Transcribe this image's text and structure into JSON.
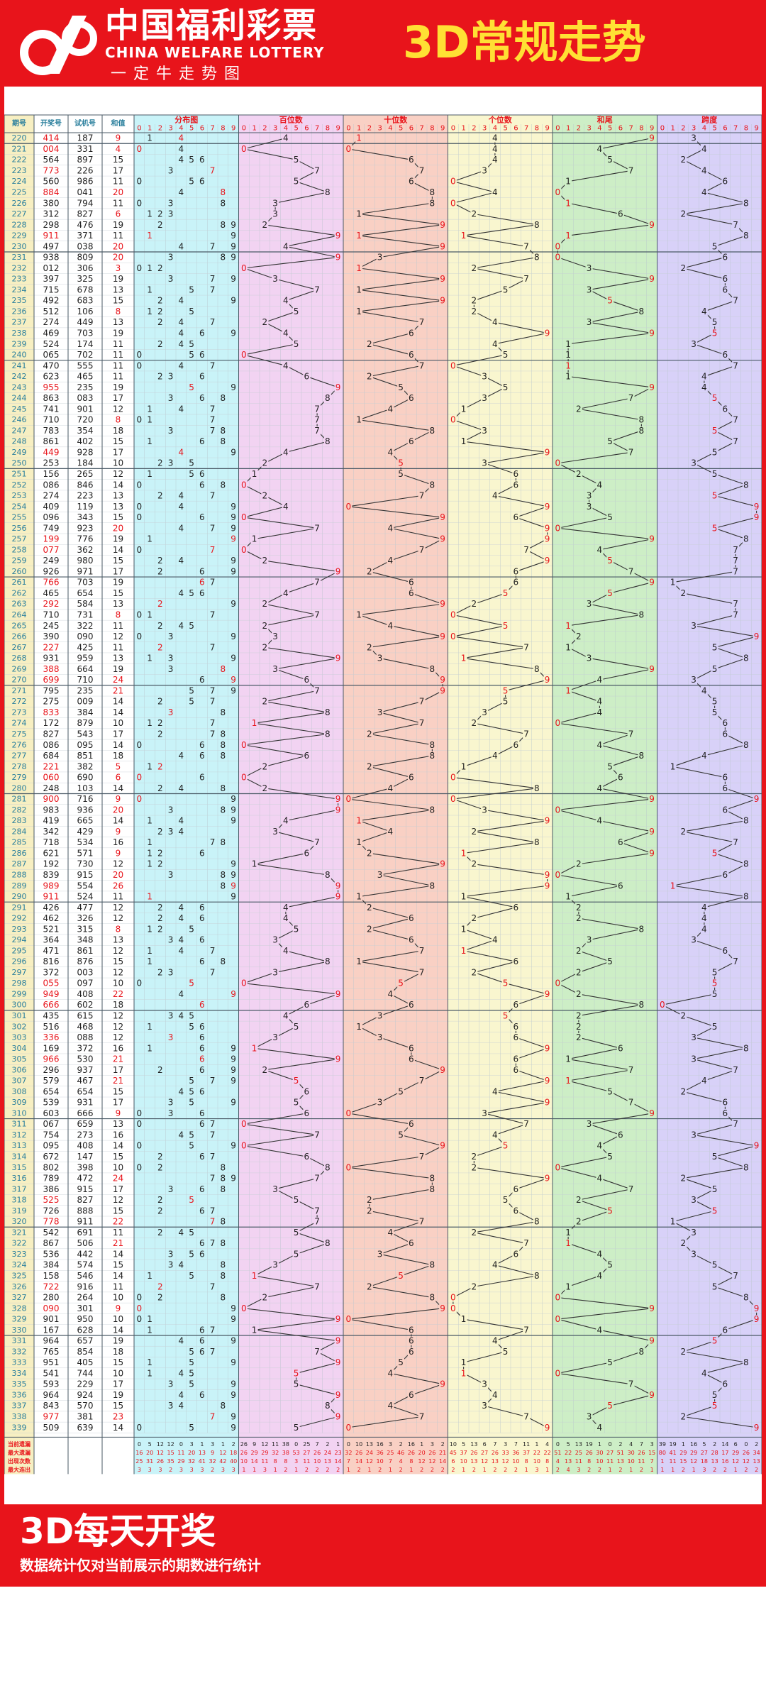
{
  "header": {
    "brand_cn": "中国福利彩票",
    "brand_en": "CHINA WELFARE LOTTERY",
    "slogan": "一定牛走势图",
    "title": "3D常规走势"
  },
  "footer": {
    "title": "3D每天开奖",
    "note": "数据统计仅对当前展示的期数进行统计"
  },
  "colors": {
    "brand_red": "#e8141b",
    "title_yellow": "#ffe034",
    "issue_col": "#f7efc2",
    "section_bg": [
      "#c9f3f8",
      "#f2d3f2",
      "#f9d0c4",
      "#f9f6cf",
      "#cdeec6",
      "#d8d1f8"
    ],
    "line": "#333333",
    "hot_number": "#e8141b",
    "issue_text": "#2a7f9d",
    "number_text": "#222222"
  },
  "chart_data": {
    "type": "table",
    "column_headers": [
      "期号",
      "开奖号",
      "试机号",
      "和值"
    ],
    "section_titles": [
      "分布图",
      "百位数",
      "十位数",
      "个位数",
      "和尾",
      "跨度"
    ],
    "digit_labels": [
      "0",
      "1",
      "2",
      "3",
      "4",
      "5",
      "6",
      "7",
      "8",
      "9"
    ],
    "stats_labels": [
      "当前遗漏",
      "最大遗漏",
      "出现次数",
      "最大连出"
    ],
    "stats": {
      "current_miss": {
        "distribution": [
          0,
          5,
          12,
          12,
          0,
          3,
          1,
          3,
          1,
          2
        ],
        "hundreds": [
          26,
          9,
          12,
          11,
          38,
          0,
          25,
          7,
          2,
          1
        ],
        "tens": [
          0,
          10,
          13,
          16,
          3,
          2,
          16,
          1,
          3,
          2
        ],
        "units": [
          10,
          5,
          13,
          6,
          7,
          3,
          7,
          11,
          1,
          4
        ],
        "sum_tail": [
          0,
          5,
          13,
          19,
          1,
          0,
          2,
          4,
          7,
          3
        ],
        "span": [
          39,
          19,
          1,
          16,
          5,
          2,
          14,
          6,
          0,
          2
        ]
      },
      "max_miss": {
        "distribution": [
          16,
          20,
          12,
          15,
          11,
          20,
          13,
          9,
          12,
          18
        ],
        "hundreds": [
          26,
          29,
          29,
          32,
          38,
          53,
          27,
          26,
          24,
          23
        ],
        "tens": [
          32,
          26,
          24,
          36,
          25,
          46,
          26,
          20,
          26,
          21
        ],
        "units": [
          45,
          37,
          26,
          27,
          26,
          33,
          36,
          37,
          22,
          22
        ],
        "sum_tail": [
          51,
          22,
          25,
          26,
          30,
          27,
          51,
          30,
          26,
          15
        ],
        "span": [
          80,
          41,
          29,
          29,
          27,
          28,
          17,
          29,
          26,
          34
        ]
      },
      "appearances": {
        "distribution": [
          25,
          31,
          26,
          35,
          29,
          32,
          41,
          32,
          42,
          40
        ],
        "hundreds": [
          10,
          14,
          11,
          8,
          8,
          3,
          11,
          10,
          13,
          14
        ],
        "tens": [
          7,
          14,
          12,
          10,
          7,
          4,
          8,
          12,
          12,
          14
        ],
        "units": [
          6,
          10,
          13,
          12,
          13,
          12,
          10,
          8,
          10,
          8
        ],
        "sum_tail": [
          4,
          13,
          11,
          8,
          10,
          11,
          13,
          10,
          11,
          7
        ],
        "span": [
          1,
          11,
          15,
          12,
          18,
          13,
          16,
          12,
          12,
          13
        ]
      },
      "max_consecutive": {
        "distribution": [
          3,
          3,
          3,
          2,
          3,
          3,
          3,
          2,
          3,
          3
        ],
        "hundreds": [
          1,
          1,
          3,
          1,
          2,
          1,
          2,
          2,
          2,
          2
        ],
        "tens": [
          1,
          2,
          1,
          2,
          1,
          2,
          1,
          2,
          2,
          2
        ],
        "units": [
          2,
          1,
          2,
          1,
          2,
          2,
          2,
          1,
          3,
          1
        ],
        "sum_tail": [
          2,
          4,
          3,
          2,
          2,
          1,
          2,
          1,
          2,
          1
        ],
        "span": [
          1,
          1,
          2,
          1,
          3,
          2,
          2,
          1,
          2,
          2
        ]
      }
    },
    "rows": [
      {
        "issue": "220",
        "draw": "414",
        "test": "187",
        "sum": "9"
      },
      {
        "issue": "221",
        "draw": "004",
        "test": "331",
        "sum": "4"
      },
      {
        "issue": "222",
        "draw": "564",
        "test": "897",
        "sum": "15"
      },
      {
        "issue": "223",
        "draw": "773",
        "test": "226",
        "sum": "17"
      },
      {
        "issue": "224",
        "draw": "560",
        "test": "986",
        "sum": "11"
      },
      {
        "issue": "225",
        "draw": "884",
        "test": "041",
        "sum": "20"
      },
      {
        "issue": "226",
        "draw": "380",
        "test": "794",
        "sum": "11"
      },
      {
        "issue": "227",
        "draw": "312",
        "test": "827",
        "sum": "6"
      },
      {
        "issue": "228",
        "draw": "298",
        "test": "476",
        "sum": "19"
      },
      {
        "issue": "229",
        "draw": "911",
        "test": "371",
        "sum": "11"
      },
      {
        "issue": "230",
        "draw": "497",
        "test": "038",
        "sum": "20"
      },
      {
        "issue": "231",
        "draw": "938",
        "test": "809",
        "sum": "20"
      },
      {
        "issue": "232",
        "draw": "012",
        "test": "306",
        "sum": "3"
      },
      {
        "issue": "233",
        "draw": "397",
        "test": "325",
        "sum": "19"
      },
      {
        "issue": "234",
        "draw": "715",
        "test": "678",
        "sum": "13"
      },
      {
        "issue": "235",
        "draw": "492",
        "test": "683",
        "sum": "15"
      },
      {
        "issue": "236",
        "draw": "512",
        "test": "106",
        "sum": "8"
      },
      {
        "issue": "237",
        "draw": "274",
        "test": "449",
        "sum": "13"
      },
      {
        "issue": "238",
        "draw": "469",
        "test": "703",
        "sum": "19"
      },
      {
        "issue": "239",
        "draw": "524",
        "test": "174",
        "sum": "11"
      },
      {
        "issue": "240",
        "draw": "065",
        "test": "702",
        "sum": "11"
      },
      {
        "issue": "241",
        "draw": "470",
        "test": "555",
        "sum": "11"
      },
      {
        "issue": "242",
        "draw": "623",
        "test": "465",
        "sum": "11"
      },
      {
        "issue": "243",
        "draw": "955",
        "test": "235",
        "sum": "19"
      },
      {
        "issue": "244",
        "draw": "863",
        "test": "083",
        "sum": "17"
      },
      {
        "issue": "245",
        "draw": "741",
        "test": "901",
        "sum": "12"
      },
      {
        "issue": "246",
        "draw": "710",
        "test": "720",
        "sum": "8"
      },
      {
        "issue": "247",
        "draw": "783",
        "test": "354",
        "sum": "18"
      },
      {
        "issue": "248",
        "draw": "861",
        "test": "402",
        "sum": "15"
      },
      {
        "issue": "249",
        "draw": "449",
        "test": "928",
        "sum": "17"
      },
      {
        "issue": "250",
        "draw": "253",
        "test": "184",
        "sum": "10"
      },
      {
        "issue": "251",
        "draw": "156",
        "test": "265",
        "sum": "12"
      },
      {
        "issue": "252",
        "draw": "086",
        "test": "846",
        "sum": "14"
      },
      {
        "issue": "253",
        "draw": "274",
        "test": "223",
        "sum": "13"
      },
      {
        "issue": "254",
        "draw": "409",
        "test": "119",
        "sum": "13"
      },
      {
        "issue": "255",
        "draw": "096",
        "test": "343",
        "sum": "15"
      },
      {
        "issue": "256",
        "draw": "749",
        "test": "923",
        "sum": "20"
      },
      {
        "issue": "257",
        "draw": "199",
        "test": "776",
        "sum": "19"
      },
      {
        "issue": "258",
        "draw": "077",
        "test": "362",
        "sum": "14"
      },
      {
        "issue": "259",
        "draw": "249",
        "test": "980",
        "sum": "15"
      },
      {
        "issue": "260",
        "draw": "926",
        "test": "971",
        "sum": "17"
      },
      {
        "issue": "261",
        "draw": "766",
        "test": "703",
        "sum": "19"
      },
      {
        "issue": "262",
        "draw": "465",
        "test": "654",
        "sum": "15"
      },
      {
        "issue": "263",
        "draw": "292",
        "test": "584",
        "sum": "13"
      },
      {
        "issue": "264",
        "draw": "710",
        "test": "731",
        "sum": "8"
      },
      {
        "issue": "265",
        "draw": "245",
        "test": "322",
        "sum": "11"
      },
      {
        "issue": "266",
        "draw": "390",
        "test": "090",
        "sum": "12"
      },
      {
        "issue": "267",
        "draw": "227",
        "test": "425",
        "sum": "11"
      },
      {
        "issue": "268",
        "draw": "931",
        "test": "959",
        "sum": "13"
      },
      {
        "issue": "269",
        "draw": "388",
        "test": "664",
        "sum": "19"
      },
      {
        "issue": "270",
        "draw": "699",
        "test": "710",
        "sum": "24"
      },
      {
        "issue": "271",
        "draw": "795",
        "test": "235",
        "sum": "21"
      },
      {
        "issue": "272",
        "draw": "275",
        "test": "009",
        "sum": "14"
      },
      {
        "issue": "273",
        "draw": "833",
        "test": "384",
        "sum": "14"
      },
      {
        "issue": "274",
        "draw": "172",
        "test": "879",
        "sum": "10"
      },
      {
        "issue": "275",
        "draw": "827",
        "test": "543",
        "sum": "17"
      },
      {
        "issue": "276",
        "draw": "086",
        "test": "095",
        "sum": "14"
      },
      {
        "issue": "277",
        "draw": "684",
        "test": "851",
        "sum": "18"
      },
      {
        "issue": "278",
        "draw": "221",
        "test": "382",
        "sum": "5"
      },
      {
        "issue": "279",
        "draw": "060",
        "test": "690",
        "sum": "6"
      },
      {
        "issue": "280",
        "draw": "248",
        "test": "103",
        "sum": "14"
      },
      {
        "issue": "281",
        "draw": "900",
        "test": "716",
        "sum": "9"
      },
      {
        "issue": "282",
        "draw": "983",
        "test": "936",
        "sum": "20"
      },
      {
        "issue": "283",
        "draw": "419",
        "test": "665",
        "sum": "14"
      },
      {
        "issue": "284",
        "draw": "342",
        "test": "429",
        "sum": "9"
      },
      {
        "issue": "285",
        "draw": "718",
        "test": "534",
        "sum": "16"
      },
      {
        "issue": "286",
        "draw": "621",
        "test": "571",
        "sum": "9"
      },
      {
        "issue": "287",
        "draw": "192",
        "test": "730",
        "sum": "12"
      },
      {
        "issue": "288",
        "draw": "839",
        "test": "915",
        "sum": "20"
      },
      {
        "issue": "289",
        "draw": "989",
        "test": "554",
        "sum": "26"
      },
      {
        "issue": "290",
        "draw": "911",
        "test": "524",
        "sum": "11"
      },
      {
        "issue": "291",
        "draw": "426",
        "test": "477",
        "sum": "12"
      },
      {
        "issue": "292",
        "draw": "462",
        "test": "326",
        "sum": "12"
      },
      {
        "issue": "293",
        "draw": "521",
        "test": "315",
        "sum": "8"
      },
      {
        "issue": "294",
        "draw": "364",
        "test": "348",
        "sum": "13"
      },
      {
        "issue": "295",
        "draw": "471",
        "test": "861",
        "sum": "12"
      },
      {
        "issue": "296",
        "draw": "816",
        "test": "876",
        "sum": "15"
      },
      {
        "issue": "297",
        "draw": "372",
        "test": "003",
        "sum": "12"
      },
      {
        "issue": "298",
        "draw": "055",
        "test": "097",
        "sum": "10"
      },
      {
        "issue": "299",
        "draw": "949",
        "test": "408",
        "sum": "22"
      },
      {
        "issue": "300",
        "draw": "666",
        "test": "602",
        "sum": "18"
      },
      {
        "issue": "301",
        "draw": "435",
        "test": "615",
        "sum": "12"
      },
      {
        "issue": "302",
        "draw": "516",
        "test": "468",
        "sum": "12"
      },
      {
        "issue": "303",
        "draw": "336",
        "test": "088",
        "sum": "12"
      },
      {
        "issue": "304",
        "draw": "169",
        "test": "372",
        "sum": "16"
      },
      {
        "issue": "305",
        "draw": "966",
        "test": "530",
        "sum": "21"
      },
      {
        "issue": "306",
        "draw": "296",
        "test": "937",
        "sum": "17"
      },
      {
        "issue": "307",
        "draw": "579",
        "test": "467",
        "sum": "21"
      },
      {
        "issue": "308",
        "draw": "654",
        "test": "654",
        "sum": "15"
      },
      {
        "issue": "309",
        "draw": "539",
        "test": "931",
        "sum": "17"
      },
      {
        "issue": "310",
        "draw": "603",
        "test": "666",
        "sum": "9"
      },
      {
        "issue": "311",
        "draw": "067",
        "test": "659",
        "sum": "13"
      },
      {
        "issue": "312",
        "draw": "754",
        "test": "273",
        "sum": "16"
      },
      {
        "issue": "313",
        "draw": "095",
        "test": "408",
        "sum": "14"
      },
      {
        "issue": "314",
        "draw": "672",
        "test": "147",
        "sum": "15"
      },
      {
        "issue": "315",
        "draw": "802",
        "test": "398",
        "sum": "10"
      },
      {
        "issue": "316",
        "draw": "789",
        "test": "472",
        "sum": "24"
      },
      {
        "issue": "317",
        "draw": "386",
        "test": "915",
        "sum": "17"
      },
      {
        "issue": "318",
        "draw": "525",
        "test": "827",
        "sum": "12"
      },
      {
        "issue": "319",
        "draw": "726",
        "test": "888",
        "sum": "15"
      },
      {
        "issue": "320",
        "draw": "778",
        "test": "911",
        "sum": "22"
      },
      {
        "issue": "321",
        "draw": "542",
        "test": "691",
        "sum": "11"
      },
      {
        "issue": "322",
        "draw": "867",
        "test": "506",
        "sum": "21"
      },
      {
        "issue": "323",
        "draw": "536",
        "test": "442",
        "sum": "14"
      },
      {
        "issue": "324",
        "draw": "384",
        "test": "574",
        "sum": "15"
      },
      {
        "issue": "325",
        "draw": "158",
        "test": "546",
        "sum": "14"
      },
      {
        "issue": "326",
        "draw": "722",
        "test": "916",
        "sum": "11"
      },
      {
        "issue": "327",
        "draw": "280",
        "test": "264",
        "sum": "10"
      },
      {
        "issue": "328",
        "draw": "090",
        "test": "301",
        "sum": "9"
      },
      {
        "issue": "329",
        "draw": "901",
        "test": "950",
        "sum": "10"
      },
      {
        "issue": "330",
        "draw": "167",
        "test": "628",
        "sum": "14"
      },
      {
        "issue": "331",
        "draw": "964",
        "test": "657",
        "sum": "19"
      },
      {
        "issue": "332",
        "draw": "765",
        "test": "854",
        "sum": "18"
      },
      {
        "issue": "333",
        "draw": "951",
        "test": "405",
        "sum": "15"
      },
      {
        "issue": "334",
        "draw": "541",
        "test": "744",
        "sum": "10"
      },
      {
        "issue": "335",
        "draw": "593",
        "test": "229",
        "sum": "17"
      },
      {
        "issue": "336",
        "draw": "964",
        "test": "924",
        "sum": "19"
      },
      {
        "issue": "337",
        "draw": "843",
        "test": "570",
        "sum": "15"
      },
      {
        "issue": "338",
        "draw": "977",
        "test": "381",
        "sum": "23"
      },
      {
        "issue": "339",
        "draw": "509",
        "test": "639",
        "sum": "14"
      }
    ]
  }
}
